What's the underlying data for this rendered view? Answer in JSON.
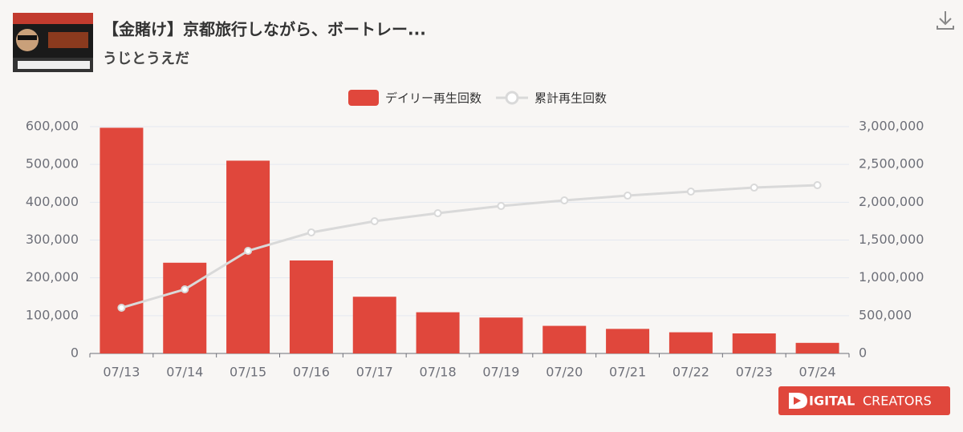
{
  "header": {
    "title": "【金賭け】京都旅行しながら、ボートレー...",
    "channel": "うじとうえだ"
  },
  "chart_data": {
    "type": "bar_line",
    "categories": [
      "07/13",
      "07/14",
      "07/15",
      "07/16",
      "07/17",
      "07/18",
      "07/19",
      "07/20",
      "07/21",
      "07/22",
      "07/23",
      "07/24"
    ],
    "series": [
      {
        "name": "デイリー再生回数",
        "type": "bar",
        "color": "#e0473c",
        "values": [
          597000,
          240000,
          510000,
          246000,
          150000,
          109000,
          95000,
          73000,
          65000,
          56000,
          53000,
          28000
        ]
      },
      {
        "name": "累計再生回数",
        "type": "line",
        "axis": "y2",
        "color": "#d9d9d9",
        "values": [
          604000,
          848000,
          1357000,
          1601000,
          1749000,
          1855000,
          1950000,
          2025000,
          2088000,
          2141000,
          2194000,
          2226000
        ]
      }
    ],
    "ylim": [
      0,
      600000
    ],
    "yticks": [
      0,
      {
        "value": 100000,
        "label": "100,000"
      },
      {
        "value": 200000,
        "label": "200,000"
      },
      {
        "value": 300000,
        "label": "300,000"
      },
      {
        "value": 400000,
        "label": "400,000"
      },
      {
        "value": 500000,
        "label": "500,000"
      },
      {
        "value": 600000,
        "label": "600,000"
      }
    ],
    "y2lim": [
      0,
      3000000
    ],
    "y2ticks": [
      0,
      {
        "value": 500000,
        "label": "500,000"
      },
      {
        "value": 1000000,
        "label": "1,000,000"
      },
      {
        "value": 1500000,
        "label": "1,500,000"
      },
      {
        "value": 2000000,
        "label": "2,000,000"
      },
      {
        "value": 2500000,
        "label": "2,500,000"
      },
      {
        "value": 3000000,
        "label": "3,000,000"
      }
    ],
    "grid": true
  },
  "brand": {
    "first": "IGITAL",
    "second": "CREATORS"
  }
}
